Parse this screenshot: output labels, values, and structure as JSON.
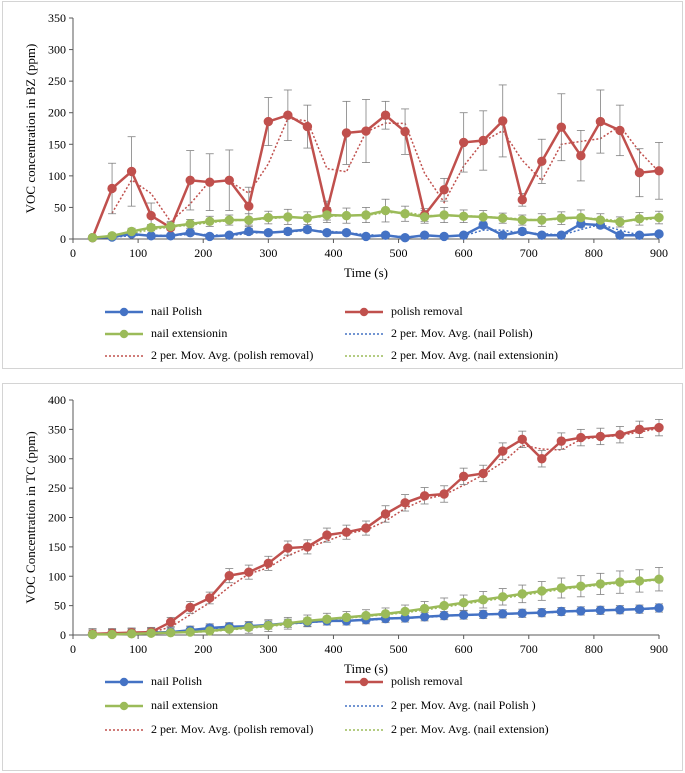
{
  "colors": {
    "nail_polish": "#4472c4",
    "polish_removal": "#c0504d",
    "nail_extension": "#9bbb59",
    "axis": "#595959",
    "grid_text": "#000000"
  },
  "chart_data": [
    {
      "type": "line",
      "title": "",
      "xlabel": "Time (s)",
      "ylabel": "VOC concentration in BZ (ppm)",
      "xlim": [
        0,
        900
      ],
      "ylim": [
        0,
        350
      ],
      "x_ticks": [
        "0",
        "100",
        "200",
        "300",
        "400",
        "500",
        "600",
        "700",
        "800",
        "900"
      ],
      "y_ticks": [
        "0",
        "50",
        "100",
        "150",
        "200",
        "250",
        "300",
        "350"
      ],
      "x": [
        30,
        60,
        90,
        120,
        150,
        180,
        210,
        240,
        270,
        300,
        330,
        360,
        390,
        420,
        450,
        480,
        510,
        540,
        570,
        600,
        630,
        660,
        690,
        720,
        750,
        780,
        810,
        840,
        870,
        900
      ],
      "series": [
        {
          "name": "nail Polish",
          "color_key": "nail_polish",
          "values": [
            2,
            3,
            8,
            5,
            5,
            10,
            4,
            6,
            12,
            10,
            12,
            15,
            10,
            10,
            4,
            6,
            2,
            6,
            4,
            6,
            22,
            6,
            12,
            6,
            6,
            24,
            22,
            6,
            6,
            8
          ],
          "errors": [
            3,
            3,
            3,
            3,
            3,
            4,
            3,
            3,
            5,
            4,
            5,
            5,
            4,
            4,
            3,
            4,
            2,
            3,
            3,
            3,
            5,
            4,
            5,
            3,
            3,
            5,
            5,
            3,
            3,
            3
          ]
        },
        {
          "name": "polish removal",
          "color_key": "polish_removal",
          "values": [
            2,
            80,
            107,
            37,
            18,
            93,
            90,
            93,
            52,
            186,
            196,
            178,
            45,
            168,
            171,
            196,
            170,
            38,
            78,
            153,
            156,
            187,
            62,
            123,
            177,
            132,
            186,
            172,
            105,
            108
          ],
          "errors": [
            2,
            40,
            55,
            20,
            10,
            47,
            45,
            48,
            30,
            38,
            40,
            34,
            15,
            50,
            50,
            22,
            36,
            10,
            18,
            47,
            47,
            57,
            10,
            35,
            53,
            40,
            50,
            40,
            38,
            45
          ]
        },
        {
          "name": "nail extensionin",
          "color_key": "nail_extension",
          "values": [
            2,
            5,
            12,
            18,
            20,
            24,
            28,
            30,
            30,
            34,
            35,
            33,
            38,
            37,
            38,
            45,
            40,
            35,
            38,
            36,
            35,
            33,
            30,
            30,
            33,
            34,
            30,
            27,
            32,
            34
          ],
          "errors": [
            2,
            4,
            5,
            5,
            6,
            7,
            8,
            8,
            10,
            10,
            12,
            10,
            12,
            12,
            12,
            18,
            12,
            10,
            12,
            10,
            10,
            8,
            8,
            10,
            10,
            12,
            10,
            8,
            10,
            10
          ]
        }
      ],
      "moving_average": {
        "period": 2,
        "labels": [
          "2 per. Mov. Avg. (nail Polish)",
          "2 per. Mov. Avg. (polish removal)",
          "2 per. Mov. Avg. (nail extensionin)"
        ]
      },
      "legend": "bottom",
      "legend_labels": [
        "nail Polish",
        "polish removal",
        "nail extensionin",
        "2 per. Mov. Avg. (nail Polish)",
        "2 per. Mov. Avg. (polish removal)",
        "2 per. Mov. Avg. (nail extensionin)"
      ]
    },
    {
      "type": "line",
      "title": "",
      "xlabel": "Time (s)",
      "ylabel": "VOC Concentration in TC (ppm)",
      "xlim": [
        0,
        900
      ],
      "ylim": [
        0,
        400
      ],
      "x_ticks": [
        "0",
        "100",
        "200",
        "300",
        "400",
        "500",
        "600",
        "700",
        "800",
        "900"
      ],
      "y_ticks": [
        "0",
        "50",
        "100",
        "150",
        "200",
        "250",
        "300",
        "350",
        "400"
      ],
      "x": [
        30,
        60,
        90,
        120,
        150,
        180,
        210,
        240,
        270,
        300,
        330,
        360,
        390,
        420,
        450,
        480,
        510,
        540,
        570,
        600,
        630,
        660,
        690,
        720,
        750,
        780,
        810,
        840,
        870,
        900
      ],
      "series": [
        {
          "name": "nail Polish",
          "color_key": "nail_polish",
          "values": [
            1,
            2,
            3,
            4,
            5,
            8,
            12,
            14,
            15,
            17,
            20,
            22,
            24,
            24,
            26,
            28,
            29,
            31,
            33,
            34,
            35,
            36,
            37,
            38,
            40,
            41,
            42,
            43,
            44,
            46
          ],
          "errors": [
            8,
            8,
            8,
            8,
            7,
            7,
            7,
            7,
            7,
            7,
            7,
            7,
            7,
            7,
            7,
            7,
            7,
            7,
            7,
            7,
            7,
            7,
            7,
            7,
            7,
            7,
            7,
            7,
            7,
            7
          ]
        },
        {
          "name": "polish removal",
          "color_key": "polish_removal",
          "values": [
            2,
            3,
            4,
            5,
            22,
            47,
            63,
            101,
            107,
            122,
            148,
            150,
            170,
            175,
            182,
            206,
            225,
            237,
            240,
            270,
            275,
            313,
            333,
            300,
            330,
            336,
            338,
            341,
            350,
            353
          ],
          "errors": [
            6,
            6,
            6,
            6,
            8,
            10,
            10,
            12,
            12,
            12,
            12,
            12,
            12,
            12,
            12,
            14,
            14,
            14,
            14,
            14,
            14,
            14,
            14,
            14,
            14,
            14,
            14,
            14,
            14,
            14
          ]
        },
        {
          "name": "nail extension",
          "color_key": "nail_extension",
          "values": [
            1,
            1,
            2,
            3,
            4,
            5,
            7,
            10,
            13,
            16,
            20,
            24,
            27,
            30,
            33,
            36,
            40,
            45,
            50,
            55,
            60,
            65,
            70,
            75,
            80,
            83,
            87,
            90,
            92,
            95
          ],
          "errors": [
            10,
            10,
            10,
            10,
            10,
            10,
            10,
            10,
            10,
            10,
            10,
            10,
            10,
            10,
            10,
            10,
            11,
            12,
            13,
            13,
            14,
            14,
            15,
            16,
            17,
            18,
            18,
            19,
            19,
            20
          ]
        }
      ],
      "moving_average": {
        "period": 2,
        "labels": [
          "2 per. Mov. Avg. (nail Polish )",
          "2 per. Mov. Avg. (polish removal)",
          "2 per. Mov. Avg. (nail extension)"
        ]
      },
      "legend": "bottom",
      "legend_labels": [
        "nail Polish",
        "polish removal",
        "nail extension",
        "2 per. Mov. Avg. (nail Polish )",
        "2 per. Mov. Avg. (polish removal)",
        "2 per. Mov. Avg. (nail extension)"
      ]
    }
  ]
}
